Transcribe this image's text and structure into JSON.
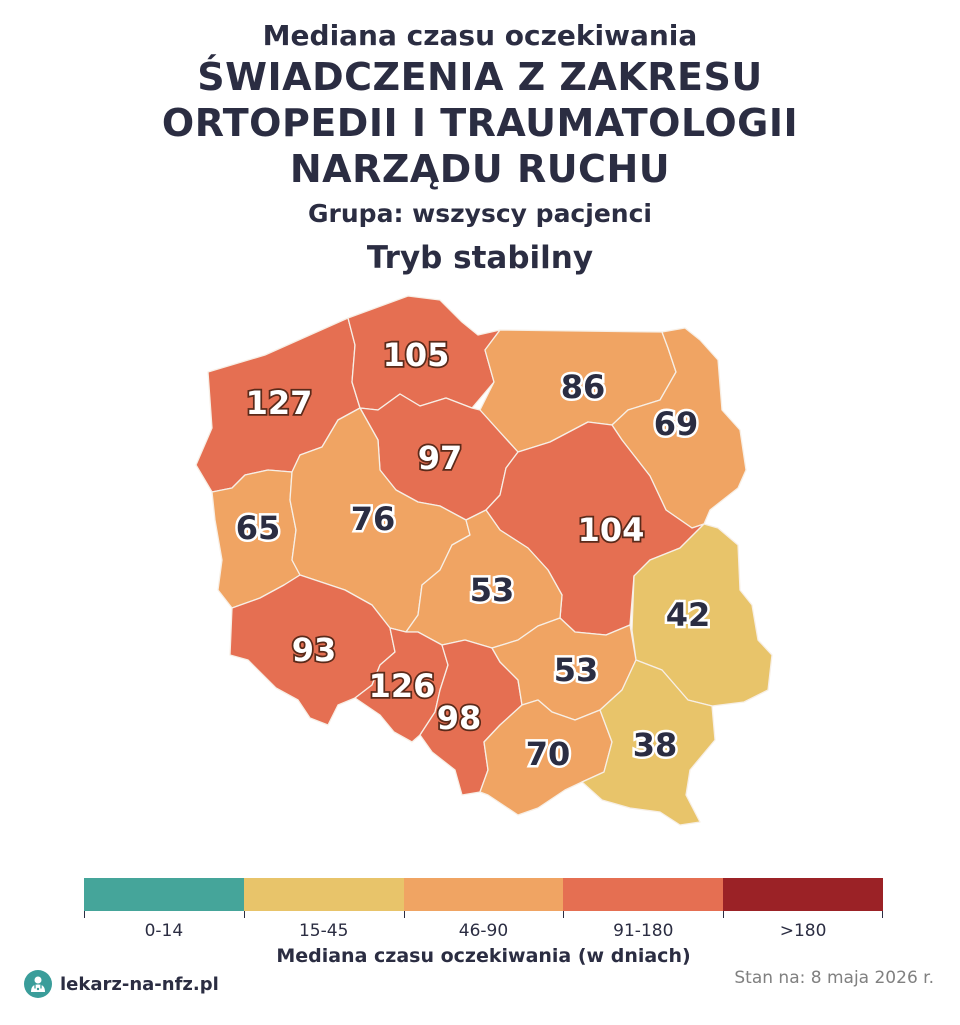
{
  "title": {
    "superscript": "Mediana czasu oczekiwania",
    "main_line1": "ŚWIADCZENIA Z ZAKRESU",
    "main_line2": "ORTOPEDII I TRAUMATOLOGII",
    "main_line3": "NARZĄDU RUCHU",
    "group": "Grupa: wszyscy pacjenci",
    "mode": "Tryb stabilny"
  },
  "map_values": {
    "zachodniopomorskie": "127",
    "pomorskie": "105",
    "warminsko_mazurskie": "86",
    "podlaskie": "69",
    "kujawsko_pomorskie": "97",
    "lubuskie": "65",
    "wielkopolskie": "76",
    "mazowieckie": "104",
    "lodzkie": "53",
    "lubelskie": "42",
    "dolnoslaskie": "93",
    "opolskie": "126",
    "slaskie": "98",
    "swietokrzyskie": "53",
    "malopolskie": "70",
    "podkarpackie": "38"
  },
  "region_colors": {
    "zachodniopomorskie": "#e56f52",
    "pomorskie": "#e56f52",
    "warminsko_mazurskie": "#f0a463",
    "podlaskie": "#f0a463",
    "kujawsko_pomorskie": "#e56f52",
    "lubuskie": "#f0a463",
    "wielkopolskie": "#f0a463",
    "mazowieckie": "#e56f52",
    "lodzkie": "#f0a463",
    "lubelskie": "#e8c46a",
    "dolnoslaskie": "#e56f52",
    "opolskie": "#e56f52",
    "slaskie": "#e56f52",
    "swietokrzyskie": "#f0a463",
    "malopolskie": "#f0a463",
    "podkarpackie": "#e8c46a"
  },
  "legend": {
    "segments": [
      {
        "label": "0-14",
        "color": "#45a59a"
      },
      {
        "label": "15-45",
        "color": "#e8c46a"
      },
      {
        "label": "46-90",
        "color": "#f0a463"
      },
      {
        "label": "91-180",
        "color": "#e56f52"
      },
      {
        "label": ">180",
        "color": "#9b2226"
      }
    ],
    "title": "Mediana czasu oczekiwania (w dniach)"
  },
  "footer": {
    "brand": "lekarz-na-nfz.pl",
    "date": "Stan na: 8 maja 2026 r."
  }
}
